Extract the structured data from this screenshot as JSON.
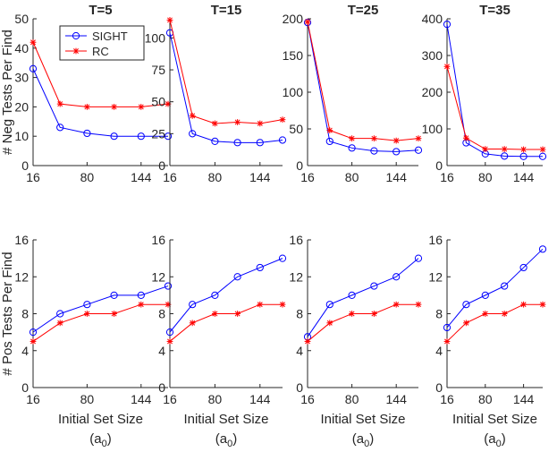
{
  "figure": {
    "row_labels": [
      "# Neg Tests Per Find",
      "# Pos Tests Per Find"
    ],
    "xlabel": "Initial Set Size",
    "xlabel_sub": "(a",
    "xlabel_sub_idx": "0",
    "xlabel_sub_close": ")"
  },
  "colors": {
    "SIGHT": "#0000ff",
    "RC": "#ff0000",
    "axis": "#262626"
  },
  "chart_data": [
    {
      "type": "line",
      "title": "T=5",
      "ylabel": "# Neg Tests Per Find",
      "xlabel": "",
      "x": [
        16,
        48,
        80,
        112,
        144,
        176
      ],
      "xlim": [
        16,
        176
      ],
      "xticks": [
        16,
        80,
        144
      ],
      "ylim": [
        0,
        50
      ],
      "yticks": [
        0,
        10,
        20,
        30,
        40,
        50
      ],
      "legend": {
        "position": "top-right",
        "entries": [
          "SIGHT",
          "RC"
        ]
      },
      "series": [
        {
          "name": "SIGHT",
          "marker": "o",
          "values": [
            33,
            13,
            11,
            10,
            10,
            10
          ]
        },
        {
          "name": "RC",
          "marker": "*",
          "values": [
            42,
            21,
            20,
            20,
            20,
            21
          ]
        }
      ]
    },
    {
      "type": "line",
      "title": "T=15",
      "ylabel": "",
      "xlabel": "",
      "x": [
        16,
        48,
        80,
        112,
        144,
        176
      ],
      "xlim": [
        16,
        176
      ],
      "xticks": [
        16,
        80,
        144
      ],
      "ylim": [
        0,
        115
      ],
      "yticks": [
        0,
        25,
        50,
        75,
        100
      ],
      "series": [
        {
          "name": "SIGHT",
          "marker": "o",
          "values": [
            104,
            25,
            19,
            18,
            18,
            20
          ]
        },
        {
          "name": "RC",
          "marker": "*",
          "values": [
            114,
            39,
            33,
            34,
            33,
            36
          ]
        }
      ]
    },
    {
      "type": "line",
      "title": "T=25",
      "ylabel": "",
      "xlabel": "",
      "x": [
        16,
        48,
        80,
        112,
        144,
        176
      ],
      "xlim": [
        16,
        176
      ],
      "xticks": [
        16,
        80,
        144
      ],
      "ylim": [
        0,
        200
      ],
      "yticks": [
        0,
        50,
        100,
        150,
        200
      ],
      "series": [
        {
          "name": "SIGHT",
          "marker": "o",
          "values": [
            195,
            33,
            24,
            20,
            19,
            21
          ]
        },
        {
          "name": "RC",
          "marker": "*",
          "values": [
            196,
            48,
            37,
            37,
            34,
            37
          ]
        }
      ]
    },
    {
      "type": "line",
      "title": "T=35",
      "ylabel": "",
      "xlabel": "",
      "x": [
        16,
        48,
        80,
        112,
        144,
        176
      ],
      "xlim": [
        16,
        176
      ],
      "xticks": [
        16,
        80,
        144
      ],
      "ylim": [
        0,
        400
      ],
      "yticks": [
        0,
        100,
        200,
        300,
        400
      ],
      "series": [
        {
          "name": "SIGHT",
          "marker": "o",
          "values": [
            385,
            62,
            32,
            26,
            25,
            25
          ]
        },
        {
          "name": "RC",
          "marker": "*",
          "values": [
            270,
            75,
            45,
            45,
            44,
            44
          ]
        }
      ]
    },
    {
      "type": "line",
      "title": "",
      "ylabel": "# Pos Tests Per Find",
      "xlabel": "Initial Set Size",
      "x": [
        16,
        48,
        80,
        112,
        144,
        176
      ],
      "xlim": [
        16,
        176
      ],
      "xticks": [
        16,
        80,
        144
      ],
      "ylim": [
        0,
        16
      ],
      "yticks": [
        0,
        4,
        8,
        12,
        16
      ],
      "series": [
        {
          "name": "SIGHT",
          "marker": "o",
          "values": [
            6,
            8,
            9,
            10,
            10,
            11
          ]
        },
        {
          "name": "RC",
          "marker": "*",
          "values": [
            5,
            7,
            8,
            8,
            9,
            9
          ]
        }
      ]
    },
    {
      "type": "line",
      "title": "",
      "ylabel": "",
      "xlabel": "Initial Set Size",
      "x": [
        16,
        48,
        80,
        112,
        144,
        176
      ],
      "xlim": [
        16,
        176
      ],
      "xticks": [
        16,
        80,
        144
      ],
      "ylim": [
        0,
        16
      ],
      "yticks": [
        0,
        4,
        8,
        12,
        16
      ],
      "series": [
        {
          "name": "SIGHT",
          "marker": "o",
          "values": [
            6,
            9,
            10,
            12,
            13,
            14
          ]
        },
        {
          "name": "RC",
          "marker": "*",
          "values": [
            5,
            7,
            8,
            8,
            9,
            9
          ]
        }
      ]
    },
    {
      "type": "line",
      "title": "",
      "ylabel": "",
      "xlabel": "Initial Set Size",
      "x": [
        16,
        48,
        80,
        112,
        144,
        176
      ],
      "xlim": [
        16,
        176
      ],
      "xticks": [
        16,
        80,
        144
      ],
      "ylim": [
        0,
        16
      ],
      "yticks": [
        0,
        4,
        8,
        12,
        16
      ],
      "series": [
        {
          "name": "SIGHT",
          "marker": "o",
          "values": [
            5.5,
            9,
            10,
            11,
            12,
            14
          ]
        },
        {
          "name": "RC",
          "marker": "*",
          "values": [
            5,
            7,
            8,
            8,
            9,
            9
          ]
        }
      ]
    },
    {
      "type": "line",
      "title": "",
      "ylabel": "",
      "xlabel": "Initial Set Size",
      "x": [
        16,
        48,
        80,
        112,
        144,
        176
      ],
      "xlim": [
        16,
        176
      ],
      "xticks": [
        16,
        80,
        144
      ],
      "ylim": [
        0,
        16
      ],
      "yticks": [
        0,
        4,
        8,
        12,
        16
      ],
      "series": [
        {
          "name": "SIGHT",
          "marker": "o",
          "values": [
            6.5,
            9,
            10,
            11,
            13,
            15
          ]
        },
        {
          "name": "RC",
          "marker": "*",
          "values": [
            5,
            7,
            8,
            8,
            9,
            9
          ]
        }
      ]
    }
  ]
}
